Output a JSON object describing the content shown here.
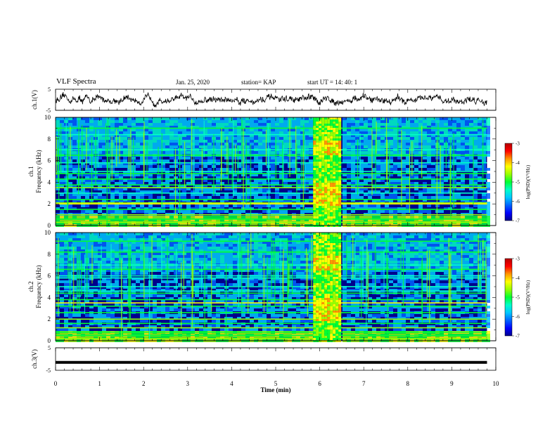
{
  "header": {
    "title": "VLF Spectra",
    "date": "Jan. 25, 2020",
    "station": "station= KAP",
    "start_ut": "start  UT =   14: 40: 1"
  },
  "colors": {
    "colormap": [
      "#00008c",
      "#0000ff",
      "#0064ff",
      "#00c8ff",
      "#00ffc8",
      "#00ff32",
      "#96ff00",
      "#ffff00",
      "#ff9600",
      "#ff0000",
      "#b40000"
    ]
  },
  "chart_data": [
    {
      "type": "line",
      "id": "ch1_waveform",
      "ylabel": "ch.1(V)",
      "yticks": [
        "5",
        "-5"
      ],
      "ylim": [
        -5,
        5
      ],
      "xlim": [
        0,
        10
      ],
      "series": [
        {
          "values_note_excluded": true,
          "approx_level": 0,
          "span_minutes": [
            0,
            9.8
          ]
        }
      ]
    },
    {
      "type": "heatmap",
      "id": "ch1_spectrogram",
      "ylabel_top": "ch.1",
      "ylabel": "Frequency (kHz)",
      "yticks": [
        "0",
        "2",
        "4",
        "6",
        "8",
        "10"
      ],
      "ylim": [
        0,
        10
      ],
      "xlim": [
        0,
        10
      ],
      "data_span_minutes": [
        0,
        9.8
      ],
      "burst_minutes": [
        5.85,
        6.45
      ],
      "colorbar": {
        "label": "log(PSD)(V²/Hz)",
        "ticks": [
          "-3",
          "-4",
          "-5",
          "-6",
          "-7"
        ],
        "range": [
          -7,
          -3
        ]
      }
    },
    {
      "type": "heatmap",
      "id": "ch2_spectrogram",
      "ylabel_top": "ch.2",
      "ylabel": "Frequency (kHz)",
      "yticks": [
        "0",
        "2",
        "4",
        "6",
        "8",
        "10"
      ],
      "ylim": [
        0,
        10
      ],
      "xlim": [
        0,
        10
      ],
      "data_span_minutes": [
        0,
        9.8
      ],
      "burst_minutes": [
        5.85,
        6.45
      ],
      "colorbar": {
        "label": "log(PSD)(V²/Hz)",
        "ticks": [
          "-3",
          "-4",
          "-5",
          "-6",
          "-7"
        ],
        "range": [
          -7,
          -3
        ]
      }
    },
    {
      "type": "line",
      "id": "ch3_level",
      "ylabel": "ch.3(V)",
      "yticks": [
        "5",
        "-5"
      ],
      "ylim": [
        -5,
        5
      ],
      "xlim": [
        0,
        10
      ],
      "xlabel": "Time (min)",
      "xticks": [
        "0",
        "1",
        "2",
        "3",
        "4",
        "5",
        "6",
        "7",
        "8",
        "9",
        "10"
      ],
      "series": [
        {
          "constant_value": -1.5,
          "span_minutes": [
            0,
            9.8
          ]
        }
      ]
    }
  ]
}
